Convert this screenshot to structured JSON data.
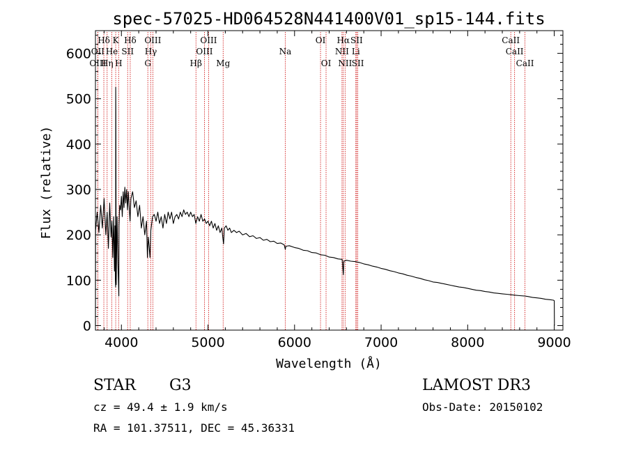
{
  "chart_data": {
    "type": "line",
    "title": "spec-57025-HD064528N441400V01_sp15-144.fits",
    "xlabel": "Wavelength (Å)",
    "ylabel": "Flux (relative)",
    "xlim": [
      3700,
      9100
    ],
    "ylim": [
      -10,
      650
    ],
    "xticks": [
      4000,
      5000,
      6000,
      7000,
      8000,
      9000
    ],
    "yticks": [
      0,
      100,
      200,
      300,
      400,
      500,
      600
    ],
    "line_color": "#000000",
    "marker_color": "#cc0000",
    "series": [
      {
        "name": "flux",
        "points": [
          [
            3700,
            0
          ],
          [
            3702,
            210
          ],
          [
            3720,
            250
          ],
          [
            3740,
            205
          ],
          [
            3760,
            265
          ],
          [
            3780,
            215
          ],
          [
            3800,
            280
          ],
          [
            3820,
            200
          ],
          [
            3835,
            250
          ],
          [
            3850,
            170
          ],
          [
            3865,
            270
          ],
          [
            3880,
            195
          ],
          [
            3890,
            230
          ],
          [
            3900,
            150
          ],
          [
            3910,
            240
          ],
          [
            3920,
            120
          ],
          [
            3925,
            220
          ],
          [
            3930,
            100
          ],
          [
            3933,
            85
          ],
          [
            3934,
            525
          ],
          [
            3936,
            470
          ],
          [
            3940,
            90
          ],
          [
            3950,
            240
          ],
          [
            3960,
            135
          ],
          [
            3970,
            65
          ],
          [
            3972,
            220
          ],
          [
            3980,
            265
          ],
          [
            3990,
            255
          ],
          [
            4000,
            285
          ],
          [
            4010,
            240
          ],
          [
            4020,
            295
          ],
          [
            4030,
            260
          ],
          [
            4040,
            305
          ],
          [
            4050,
            270
          ],
          [
            4060,
            300
          ],
          [
            4070,
            255
          ],
          [
            4080,
            295
          ],
          [
            4090,
            260
          ],
          [
            4100,
            230
          ],
          [
            4110,
            280
          ],
          [
            4130,
            295
          ],
          [
            4150,
            260
          ],
          [
            4170,
            275
          ],
          [
            4190,
            240
          ],
          [
            4210,
            265
          ],
          [
            4230,
            215
          ],
          [
            4250,
            240
          ],
          [
            4270,
            200
          ],
          [
            4290,
            230
          ],
          [
            4300,
            150
          ],
          [
            4310,
            195
          ],
          [
            4320,
            175
          ],
          [
            4330,
            150
          ],
          [
            4340,
            210
          ],
          [
            4360,
            240
          ],
          [
            4380,
            245
          ],
          [
            4400,
            230
          ],
          [
            4420,
            250
          ],
          [
            4440,
            225
          ],
          [
            4460,
            240
          ],
          [
            4480,
            215
          ],
          [
            4500,
            245
          ],
          [
            4520,
            225
          ],
          [
            4540,
            250
          ],
          [
            4560,
            235
          ],
          [
            4580,
            250
          ],
          [
            4600,
            225
          ],
          [
            4620,
            240
          ],
          [
            4640,
            245
          ],
          [
            4660,
            235
          ],
          [
            4680,
            250
          ],
          [
            4700,
            240
          ],
          [
            4720,
            255
          ],
          [
            4740,
            245
          ],
          [
            4760,
            250
          ],
          [
            4780,
            240
          ],
          [
            4800,
            250
          ],
          [
            4820,
            240
          ],
          [
            4840,
            245
          ],
          [
            4860,
            225
          ],
          [
            4880,
            240
          ],
          [
            4900,
            230
          ],
          [
            4920,
            245
          ],
          [
            4940,
            230
          ],
          [
            4960,
            235
          ],
          [
            4980,
            225
          ],
          [
            5000,
            230
          ],
          [
            5020,
            220
          ],
          [
            5040,
            230
          ],
          [
            5060,
            215
          ],
          [
            5080,
            225
          ],
          [
            5100,
            210
          ],
          [
            5120,
            220
          ],
          [
            5140,
            205
          ],
          [
            5160,
            215
          ],
          [
            5170,
            195
          ],
          [
            5180,
            180
          ],
          [
            5190,
            215
          ],
          [
            5210,
            220
          ],
          [
            5230,
            210
          ],
          [
            5250,
            215
          ],
          [
            5270,
            205
          ],
          [
            5300,
            210
          ],
          [
            5330,
            205
          ],
          [
            5360,
            208
          ],
          [
            5400,
            200
          ],
          [
            5440,
            203
          ],
          [
            5480,
            196
          ],
          [
            5520,
            198
          ],
          [
            5560,
            192
          ],
          [
            5600,
            194
          ],
          [
            5640,
            188
          ],
          [
            5680,
            190
          ],
          [
            5720,
            185
          ],
          [
            5760,
            186
          ],
          [
            5800,
            181
          ],
          [
            5840,
            182
          ],
          [
            5880,
            178
          ],
          [
            5893,
            168
          ],
          [
            5900,
            175
          ],
          [
            5940,
            176
          ],
          [
            6000,
            172
          ],
          [
            6050,
            170
          ],
          [
            6100,
            166
          ],
          [
            6150,
            165
          ],
          [
            6200,
            161
          ],
          [
            6250,
            160
          ],
          [
            6300,
            156
          ],
          [
            6350,
            155
          ],
          [
            6400,
            151
          ],
          [
            6450,
            150
          ],
          [
            6500,
            147
          ],
          [
            6550,
            146
          ],
          [
            6563,
            112
          ],
          [
            6570,
            142
          ],
          [
            6600,
            144
          ],
          [
            6650,
            142
          ],
          [
            6700,
            141
          ],
          [
            6750,
            139
          ],
          [
            6800,
            136
          ],
          [
            6850,
            134
          ],
          [
            6900,
            131
          ],
          [
            6950,
            129
          ],
          [
            7000,
            126
          ],
          [
            7050,
            124
          ],
          [
            7100,
            121
          ],
          [
            7150,
            119
          ],
          [
            7200,
            116
          ],
          [
            7250,
            114
          ],
          [
            7300,
            111
          ],
          [
            7350,
            109
          ],
          [
            7400,
            106
          ],
          [
            7450,
            104
          ],
          [
            7500,
            101
          ],
          [
            7550,
            99
          ],
          [
            7600,
            96
          ],
          [
            7650,
            95
          ],
          [
            7700,
            93
          ],
          [
            7750,
            91
          ],
          [
            7800,
            89
          ],
          [
            7850,
            87
          ],
          [
            7900,
            85
          ],
          [
            7950,
            84
          ],
          [
            8000,
            82
          ],
          [
            8050,
            80
          ],
          [
            8100,
            78
          ],
          [
            8150,
            77
          ],
          [
            8200,
            75
          ],
          [
            8250,
            74
          ],
          [
            8300,
            72
          ],
          [
            8350,
            71
          ],
          [
            8400,
            70
          ],
          [
            8450,
            69
          ],
          [
            8498,
            68
          ],
          [
            8542,
            67
          ],
          [
            8600,
            66
          ],
          [
            8662,
            65
          ],
          [
            8700,
            64
          ],
          [
            8750,
            62
          ],
          [
            8800,
            61
          ],
          [
            8850,
            60
          ],
          [
            8900,
            58
          ],
          [
            8950,
            57
          ],
          [
            8990,
            56
          ],
          [
            9000,
            55
          ],
          [
            9002,
            0
          ]
        ]
      }
    ],
    "line_markers": [
      {
        "label": "Hδ",
        "wavelength": 3797,
        "row": 1
      },
      {
        "label": "K",
        "wavelength": 3934,
        "row": 1
      },
      {
        "label": "Hδ",
        "wavelength": 4102,
        "row": 1
      },
      {
        "label": "OIII",
        "wavelength": 4363,
        "row": 1
      },
      {
        "label": "OIII",
        "wavelength": 5007,
        "row": 1
      },
      {
        "label": "OI",
        "wavelength": 6300,
        "row": 1
      },
      {
        "label": "Hα",
        "wavelength": 6563,
        "row": 1
      },
      {
        "label": "SII",
        "wavelength": 6717,
        "row": 1
      },
      {
        "label": "CaII",
        "wavelength": 8498,
        "row": 1
      },
      {
        "label": "OII",
        "wavelength": 3727,
        "row": 2
      },
      {
        "label": "He",
        "wavelength": 3889,
        "row": 2
      },
      {
        "label": "SII",
        "wavelength": 4072,
        "row": 2
      },
      {
        "label": "Hγ",
        "wavelength": 4340,
        "row": 2
      },
      {
        "label": "OIII",
        "wavelength": 4959,
        "row": 2
      },
      {
        "label": "Na",
        "wavelength": 5893,
        "row": 2
      },
      {
        "label": "NII",
        "wavelength": 6548,
        "row": 2
      },
      {
        "label": "Li",
        "wavelength": 6708,
        "row": 2
      },
      {
        "label": "CaII",
        "wavelength": 8542,
        "row": 2
      },
      {
        "label": "OIII",
        "wavelength": 3727,
        "row": 3
      },
      {
        "label": "Hη",
        "wavelength": 3835,
        "row": 3
      },
      {
        "label": "H",
        "wavelength": 3968,
        "row": 3
      },
      {
        "label": "G",
        "wavelength": 4305,
        "row": 3
      },
      {
        "label": "Hβ",
        "wavelength": 4861,
        "row": 3
      },
      {
        "label": "Mg",
        "wavelength": 5175,
        "row": 3
      },
      {
        "label": "OI",
        "wavelength": 6364,
        "row": 3
      },
      {
        "label": "NII",
        "wavelength": 6584,
        "row": 3
      },
      {
        "label": "SII",
        "wavelength": 6731,
        "row": 3
      },
      {
        "label": "CaII",
        "wavelength": 8662,
        "row": 3
      }
    ]
  },
  "info": {
    "object_class": "STAR",
    "subclass": "G3",
    "survey": "LAMOST DR3",
    "redshift": "cz = 49.4 ± 1.9 km/s",
    "obs_date": "Obs-Date: 20150102",
    "coords": "RA = 101.37511, DEC =  45.36331"
  }
}
